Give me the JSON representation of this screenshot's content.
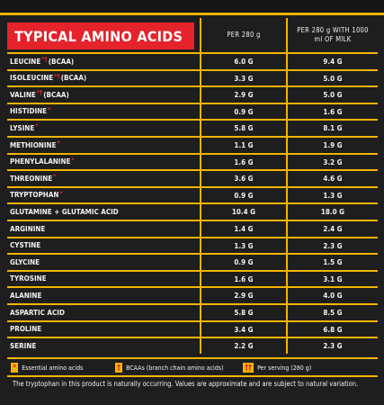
{
  "header": {
    "title": "TYPICAL AMINO ACIDS",
    "col1": "PER 280 g",
    "col2": "PER 280 g WITH 1000 ml OF MILK"
  },
  "rows": [
    {
      "name": "LEUCINE",
      "marks": "*†",
      "note": "(BCAA)",
      "per_280g": "6.0 G",
      "with_milk": "9.4 G"
    },
    {
      "name": "ISOLEUCINE",
      "marks": "*†",
      "note": "(BCAA)",
      "per_280g": "3.3 G",
      "with_milk": "5.0 G"
    },
    {
      "name": "VALINE",
      "marks": "*†",
      "note": "(BCAA)",
      "per_280g": "2.9 G",
      "with_milk": "5.0 G"
    },
    {
      "name": "HISTIDINE",
      "marks": "*",
      "per_280g": "0.9 G",
      "with_milk": "1.6 G"
    },
    {
      "name": "LYSINE",
      "marks": "*",
      "per_280g": "5.8 G",
      "with_milk": "8.1 G"
    },
    {
      "name": "METHIONINE",
      "marks": "*",
      "per_280g": "1.1 G",
      "with_milk": "1.9 G"
    },
    {
      "name": "PHENYLALANINE",
      "marks": "*",
      "per_280g": "1.6 G",
      "with_milk": "3.2 G"
    },
    {
      "name": "THREONINE",
      "marks": "*",
      "per_280g": "3.6 G",
      "with_milk": "4.6 G"
    },
    {
      "name": "TRYPTOPHAN",
      "marks": "*",
      "per_280g": "0.9 G",
      "with_milk": "1.3 G"
    },
    {
      "name": "GLUTAMINE + GLUTAMIC ACID",
      "per_280g": "10.4 G",
      "with_milk": "18.0 G"
    },
    {
      "name": "ARGININE",
      "per_280g": "1.4 G",
      "with_milk": "2.4 G"
    },
    {
      "name": "CYSTINE",
      "per_280g": "1.3 G",
      "with_milk": "2.3 G"
    },
    {
      "name": "GLYCINE",
      "per_280g": "0.9 G",
      "with_milk": "1.5 G"
    },
    {
      "name": "TYROSINE",
      "per_280g": "1.6 G",
      "with_milk": "3.1 G"
    },
    {
      "name": "ALANINE",
      "per_280g": "2.9 G",
      "with_milk": "4.0 G"
    },
    {
      "name": "ASPARTIC ACID",
      "per_280g": "5.8 G",
      "with_milk": "8.5 G"
    },
    {
      "name": "PROLINE",
      "per_280g": "3.4 G",
      "with_milk": "6.8 G"
    },
    {
      "name": "SERINE",
      "per_280g": "2.2 G",
      "with_milk": "2.3 G"
    }
  ],
  "legend": [
    {
      "symbol": "*",
      "text": "Essential amino acids"
    },
    {
      "symbol": "†",
      "text": "BCAAs (branch chain amino acids)"
    },
    {
      "symbol": "††",
      "text": "Per serving (280 g)"
    }
  ],
  "footnote": "The tryptophan in this product is naturally occurring. Values are approximate and are subject to natural variation."
}
